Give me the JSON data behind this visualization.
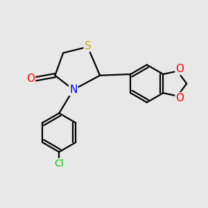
{
  "background_color": "#e8e8e8",
  "atom_colors": {
    "S": "#ccaa00",
    "N": "#0000ff",
    "O": "#ff0000",
    "Cl": "#00cc00",
    "C": "#000000"
  },
  "bond_color": "#000000",
  "bond_width": 1.6,
  "fig_width": 3.0,
  "fig_height": 3.0,
  "dpi": 100,
  "xlim": [
    0,
    10
  ],
  "ylim": [
    0,
    10
  ],
  "font_size_atom": 10
}
